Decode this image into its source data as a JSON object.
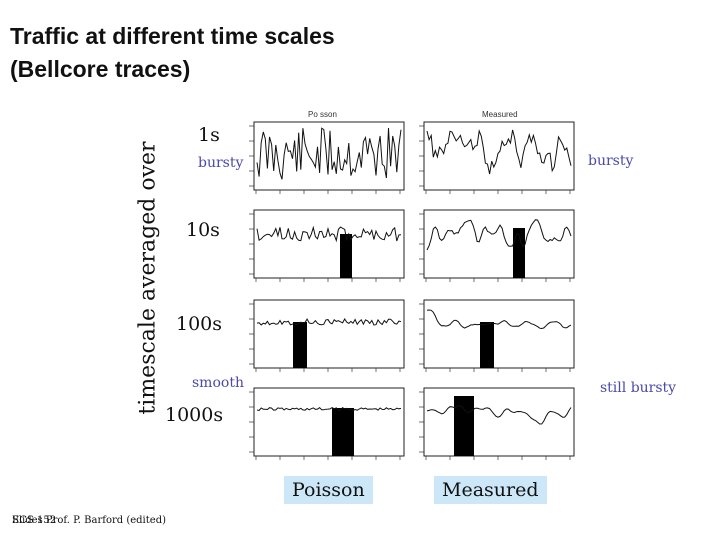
{
  "slide": {
    "title_line1": "Traffic at different time scales",
    "title_line2": "(Bellcore traces)",
    "y_axis_label": "timescale averaged over",
    "timescales": [
      "1s",
      "10s",
      "100s",
      "1000s"
    ],
    "columns": [
      "Poisson",
      "Measured"
    ],
    "column_headers": [
      "Po sson",
      "Measured"
    ],
    "annotations": {
      "left_top": "bursty",
      "left_bottom": "smooth",
      "right_top": "bursty",
      "right_bottom": "still bursty"
    },
    "footer_a": "ECS 152",
    "footer_b": "Slides Prof. P. Barford (edited)",
    "colors": {
      "annotation": "#4a4aa8",
      "legend_bg": "#cce8f8",
      "ink": "#111111"
    }
  }
}
